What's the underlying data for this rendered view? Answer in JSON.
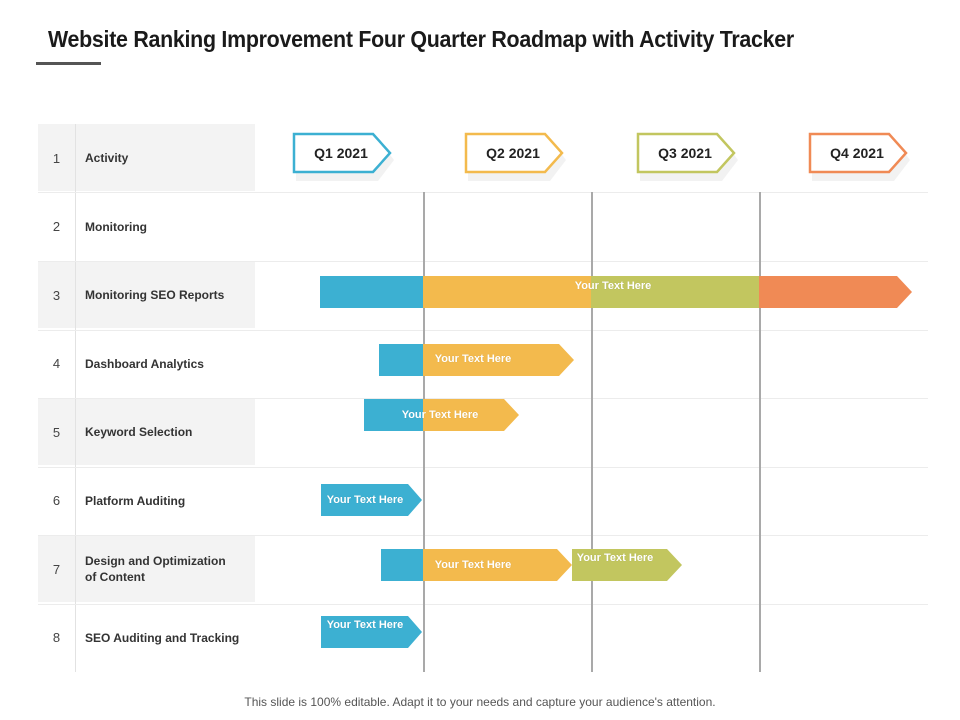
{
  "title": "Website Ranking Improvement Four Quarter Roadmap with Activity Tracker",
  "colors": {
    "q1": "#3cb0d2",
    "q2": "#f3ba4d",
    "q3": "#c2c65f",
    "q4": "#f08a55"
  },
  "quarters": [
    {
      "label": "Q1 2021",
      "color": "#3cb0d2"
    },
    {
      "label": "Q2 2021",
      "color": "#f3ba4d"
    },
    {
      "label": "Q3 2021",
      "color": "#c2c65f"
    },
    {
      "label": "Q4 2021",
      "color": "#f08a55"
    }
  ],
  "rows": [
    {
      "num": "1",
      "label": "Activity"
    },
    {
      "num": "2",
      "label": "Monitoring"
    },
    {
      "num": "3",
      "label": "Monitoring SEO Reports"
    },
    {
      "num": "4",
      "label": "Dashboard Analytics"
    },
    {
      "num": "5",
      "label": "Keyword Selection"
    },
    {
      "num": "6",
      "label": "Platform Auditing"
    },
    {
      "num": "7",
      "label": "Design and Optimization of Content"
    },
    {
      "num": "8",
      "label": "SEO Auditing and Tracking"
    }
  ],
  "bars": {
    "seo_reports_text": "Your Text Here",
    "dashboard_text": "Your Text Here",
    "keyword_text": "Your Text Here",
    "platform_text": "Your Text Here",
    "design_text_1": "Your Text Here",
    "design_text_2": "Your Text Here",
    "seo_auditing_text": "Your Text Here"
  },
  "footer": "This slide is 100% editable. Adapt it to your needs and capture your audience's attention."
}
